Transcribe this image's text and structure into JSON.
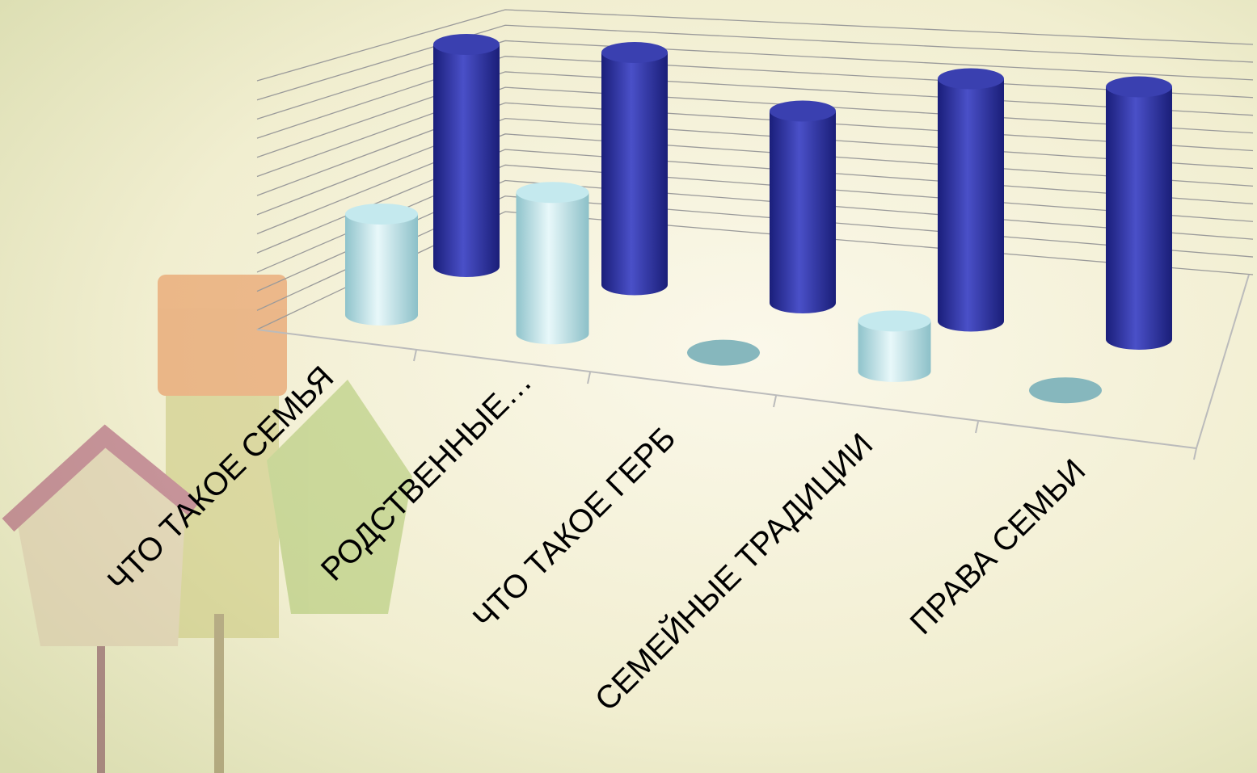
{
  "chart_data": {
    "type": "bar3d",
    "categories": [
      "ЧТО ТАКОЕ СЕМЬЯ",
      "РОДСТВЕННЫЕ…",
      "ЧТО ТАКОЕ ГЕРБ",
      "СЕМЕЙНЫЕ ТРАДИЦИИ",
      "ПРАВА СЕМЬИ"
    ],
    "series": [
      {
        "color": "#a9dde3",
        "values": [
          5,
          7,
          0,
          2.5,
          0
        ]
      },
      {
        "color": "#2a2f9c",
        "values": [
          11,
          11.5,
          9.5,
          12,
          12.5
        ]
      }
    ],
    "ylim": [
      0,
      13
    ],
    "yticks": [
      0,
      1,
      2,
      3,
      4,
      5,
      6,
      7,
      8,
      9,
      10,
      11,
      12,
      13
    ],
    "grid": true
  }
}
